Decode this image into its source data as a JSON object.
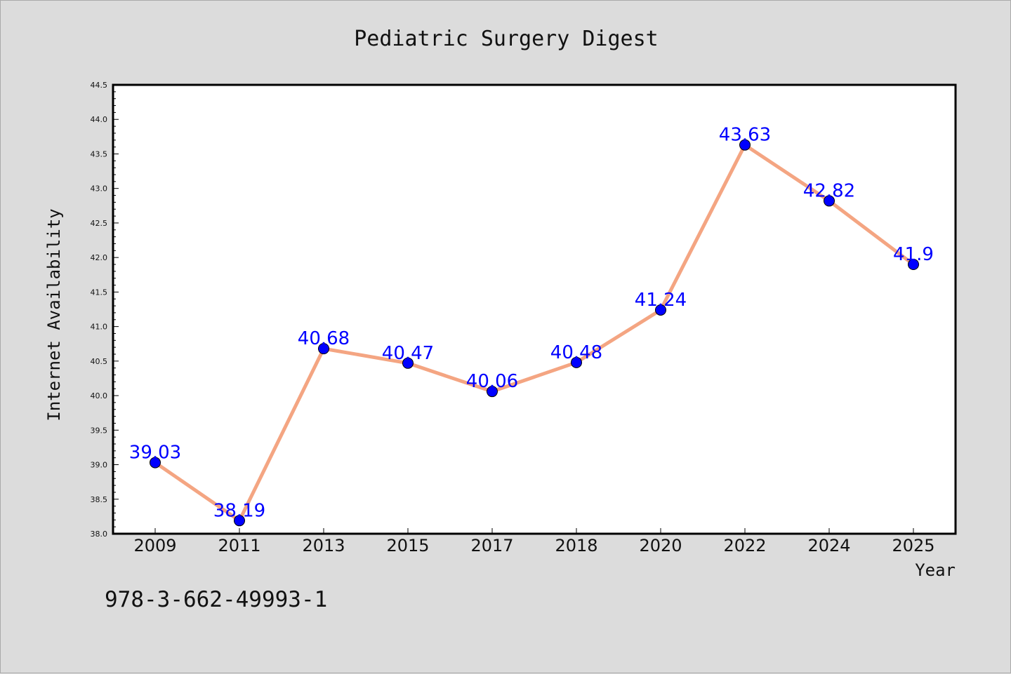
{
  "figure": {
    "background": "#dcdcdc",
    "footer_text": "978-3-662-49993-1"
  },
  "chart_data": {
    "type": "line",
    "title": "Pediatric Surgery Digest",
    "xlabel": "Year",
    "ylabel": "Internet Availability",
    "categories": [
      "2009",
      "2011",
      "2013",
      "2015",
      "2017",
      "2018",
      "2020",
      "2022",
      "2024",
      "2025"
    ],
    "series": [
      {
        "values": [
          39.03,
          38.19,
          40.68,
          40.47,
          40.06,
          40.48,
          41.24,
          43.63,
          42.82,
          41.9
        ],
        "line_color": "#f4a582",
        "marker_color": "#0000ff",
        "label_color": "#0000ff"
      }
    ],
    "data_labels": [
      "39.03",
      "38.19",
      "40.68",
      "40.47",
      "40.06",
      "40.48",
      "41.24",
      "43.63",
      "42.82",
      "41.9"
    ],
    "ylim": [
      38.0,
      44.5
    ],
    "yticks": [
      "38.0",
      "38.5",
      "39.0",
      "39.5",
      "40.0",
      "40.5",
      "41.0",
      "41.5",
      "42.0",
      "42.5",
      "43.0",
      "43.5",
      "44.0",
      "44.5"
    ],
    "grid": false,
    "legend": "none",
    "plot_background": "#ffffff"
  }
}
